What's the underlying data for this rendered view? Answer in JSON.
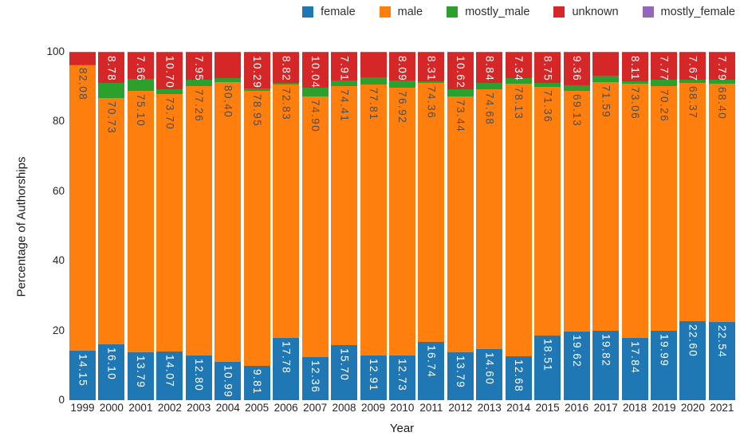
{
  "figure": {
    "xlabel": "Year",
    "ylabel": "Percentage of Authorships"
  },
  "legend": [
    {
      "name": "female",
      "color": "#1f77b4"
    },
    {
      "name": "male",
      "color": "#ff7f0e"
    },
    {
      "name": "mostly_male",
      "color": "#2ca02c"
    },
    {
      "name": "unknown",
      "color": "#d62728"
    },
    {
      "name": "mostly_female",
      "color": "#9467bd"
    }
  ],
  "chart_data": {
    "type": "bar",
    "stacked": true,
    "title": "",
    "xlabel": "Year",
    "ylabel": "Percentage of Authorships",
    "ylim": [
      0,
      100
    ],
    "yticks": [
      0,
      20,
      40,
      60,
      80,
      100
    ],
    "grid": false,
    "legend_position": "top-right",
    "categories": [
      1999,
      2000,
      2001,
      2002,
      2003,
      2004,
      2005,
      2006,
      2007,
      2008,
      2009,
      2010,
      2011,
      2012,
      2013,
      2014,
      2015,
      2016,
      2017,
      2018,
      2019,
      2020,
      2021
    ],
    "series": [
      {
        "name": "female",
        "color": "#1f77b4",
        "label_color": "#ffffff",
        "labels_shown": true,
        "values": [
          14.15,
          16.1,
          13.79,
          14.07,
          12.8,
          10.99,
          9.81,
          17.78,
          12.36,
          15.7,
          12.91,
          12.73,
          16.74,
          13.79,
          14.6,
          12.68,
          18.51,
          19.62,
          19.82,
          17.84,
          19.99,
          22.6,
          22.54
        ]
      },
      {
        "name": "male",
        "color": "#ff7f0e",
        "label_color": "#4d4d4d",
        "labels_shown": true,
        "values": [
          82.08,
          70.73,
          75.1,
          73.7,
          77.26,
          80.4,
          78.95,
          72.83,
          74.9,
          74.41,
          77.81,
          76.92,
          74.36,
          73.44,
          74.68,
          78.13,
          71.36,
          69.13,
          71.59,
          73.06,
          70.26,
          68.37,
          68.4
        ]
      },
      {
        "name": "mostly_male",
        "color": "#2ca02c",
        "label_color": null,
        "labels_shown": false,
        "values": [
          0.1,
          4.24,
          3.3,
          1.38,
          1.84,
          1.16,
          0.8,
          0.42,
          2.55,
          1.73,
          1.93,
          2.01,
          0.44,
          2.0,
          1.73,
          1.7,
          1.13,
          1.64,
          1.64,
          0.74,
          1.73,
          1.11,
          1.02
        ]
      },
      {
        "name": "unknown",
        "color": "#d62728",
        "label_color": "#ffffff",
        "labels_shown": true,
        "hidden_label_years": [
          1999,
          2004,
          2009,
          2017
        ],
        "values": [
          3.62,
          8.78,
          7.66,
          10.7,
          7.95,
          7.3,
          10.29,
          8.82,
          10.04,
          7.91,
          7.2,
          8.09,
          8.31,
          10.62,
          8.84,
          7.34,
          8.75,
          9.36,
          6.7,
          8.11,
          7.77,
          7.67,
          7.79
        ]
      },
      {
        "name": "mostly_female",
        "color": "#9467bd",
        "label_color": null,
        "labels_shown": false,
        "values": [
          0.05,
          0.15,
          0.15,
          0.15,
          0.15,
          0.15,
          0.15,
          0.15,
          0.15,
          0.25,
          0.15,
          0.25,
          0.15,
          0.15,
          0.15,
          0.15,
          0.25,
          0.25,
          0.25,
          0.25,
          0.25,
          0.25,
          0.25
        ]
      }
    ]
  }
}
